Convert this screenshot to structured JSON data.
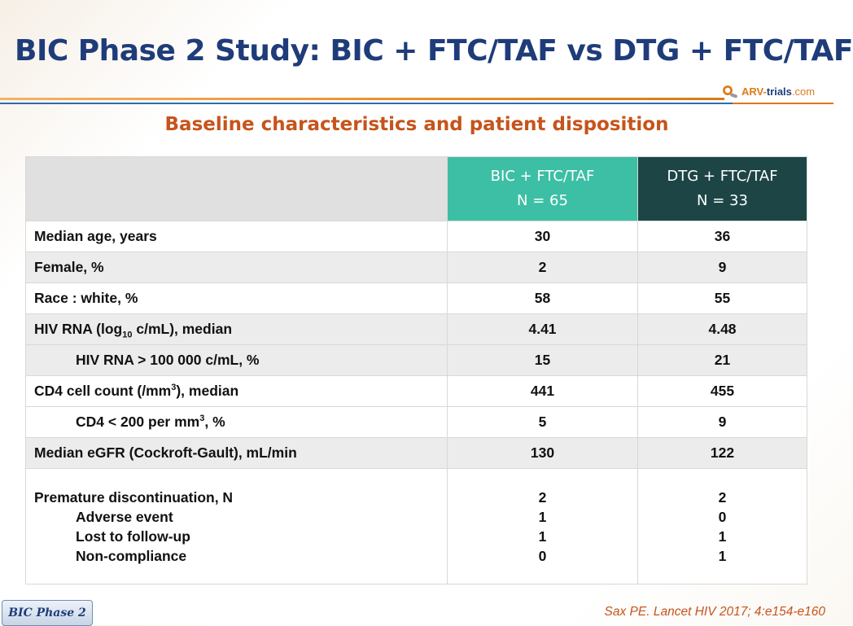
{
  "slide": {
    "title": "BIC Phase 2 Study: BIC + FTC/TAF vs DTG + FTC/TAF",
    "subtitle": "Baseline characteristics and patient disposition",
    "logo_text_a": "ARV-",
    "logo_text_b": "trials",
    "logo_text_c": ".com"
  },
  "table": {
    "columns": [
      {
        "name": "BIC + FTC/TAF",
        "n": "N = 65"
      },
      {
        "name": "DTG + FTC/TAF",
        "n": "N = 33"
      }
    ],
    "rows": [
      {
        "label": "Median age, years",
        "bic": "30",
        "dtg": "36"
      },
      {
        "label": "Female, %",
        "bic": "2",
        "dtg": "9"
      },
      {
        "label": "Race : white, %",
        "bic": "58",
        "dtg": "55"
      },
      {
        "label_pre": "HIV RNA (log",
        "label_sub": "10",
        "label_post": " c/mL), median",
        "bic": "4.41",
        "dtg": "4.48"
      },
      {
        "label": "HIV RNA > 100 000 c/mL, %",
        "bic": "15",
        "dtg": "21"
      },
      {
        "label_pre": "CD4 cell count (/mm",
        "label_sup": "3",
        "label_post": "), median",
        "bic": "441",
        "dtg": "455"
      },
      {
        "label_pre": "CD4 < 200 per mm",
        "label_sup": "3",
        "label_post": ", %",
        "bic": "5",
        "dtg": "9"
      },
      {
        "label": "Median eGFR (Cockroft-Gault), mL/min",
        "bic": "130",
        "dtg": "122"
      }
    ],
    "disposition": {
      "labels": [
        "Premature discontinuation, N",
        "Adverse event",
        "Lost to follow-up",
        "Non-compliance"
      ],
      "bic": [
        "2",
        "1",
        "1",
        "0"
      ],
      "dtg": [
        "2",
        "0",
        "1",
        "1"
      ]
    }
  },
  "footer": {
    "tab_label": "BIC Phase 2",
    "citation": "Sax PE. Lancet HIV 2017; 4:e154-e160"
  },
  "colors": {
    "title": "#1f3c7a",
    "subtitle": "#c6541b",
    "bic_header": "#3cbfa5",
    "dtg_header": "#1d4546"
  }
}
